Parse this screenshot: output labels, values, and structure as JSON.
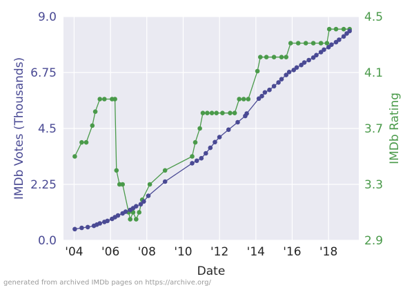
{
  "footnote": "generated from archived IMDb pages on https://archive.org/",
  "chart_data": {
    "type": "line",
    "xlabel": "Date",
    "xlim": [
      "2003-06-01",
      "2019-09-01"
    ],
    "x_ticks": [
      {
        "date": "2004-01-01",
        "label": "'04"
      },
      {
        "date": "2006-01-01",
        "label": "'06"
      },
      {
        "date": "2008-01-01",
        "label": "'08"
      },
      {
        "date": "2010-01-01",
        "label": "'10"
      },
      {
        "date": "2012-01-01",
        "label": "'12"
      },
      {
        "date": "2014-01-01",
        "label": "'14"
      },
      {
        "date": "2016-01-01",
        "label": "'16"
      },
      {
        "date": "2018-01-01",
        "label": "'18"
      }
    ],
    "grid": true,
    "legend": "none",
    "axes": {
      "left": {
        "label": "IMDb Votes (Thousands)",
        "lim": [
          0,
          9.0
        ],
        "ticks": [
          "0.0",
          "2.25",
          "4.5",
          "6.75",
          "9.0"
        ],
        "color": "#4a4a94"
      },
      "right": {
        "label": "IMDb Rating",
        "lim": [
          2.9,
          4.5
        ],
        "ticks": [
          "2.9",
          "3.3",
          "3.7",
          "4.1",
          "4.5"
        ],
        "color": "#4a9a4a"
      }
    },
    "series": [
      {
        "axis": "left",
        "color": "#4a4a94",
        "points": [
          [
            "2004-01-15",
            0.45
          ],
          [
            "2004-06-01",
            0.5
          ],
          [
            "2004-10-01",
            0.53
          ],
          [
            "2005-02-01",
            0.58
          ],
          [
            "2005-04-01",
            0.63
          ],
          [
            "2005-06-01",
            0.68
          ],
          [
            "2005-09-01",
            0.74
          ],
          [
            "2005-11-01",
            0.78
          ],
          [
            "2006-02-01",
            0.86
          ],
          [
            "2006-04-01",
            0.93
          ],
          [
            "2006-06-01",
            1.0
          ],
          [
            "2006-09-01",
            1.08
          ],
          [
            "2006-11-01",
            1.15
          ],
          [
            "2007-02-01",
            1.22
          ],
          [
            "2007-04-01",
            1.29
          ],
          [
            "2007-06-01",
            1.37
          ],
          [
            "2007-09-01",
            1.45
          ],
          [
            "2007-11-01",
            1.56
          ],
          [
            "2008-02-01",
            1.79
          ],
          [
            "2009-01-01",
            2.36
          ],
          [
            "2010-07-01",
            3.1
          ],
          [
            "2010-10-01",
            3.2
          ],
          [
            "2011-01-01",
            3.3
          ],
          [
            "2011-04-01",
            3.5
          ],
          [
            "2011-07-01",
            3.72
          ],
          [
            "2011-10-01",
            3.95
          ],
          [
            "2012-01-01",
            4.15
          ],
          [
            "2012-07-01",
            4.45
          ],
          [
            "2013-01-01",
            4.75
          ],
          [
            "2013-06-01",
            5.0
          ],
          [
            "2013-07-01",
            5.1
          ],
          [
            "2014-03-01",
            5.7
          ],
          [
            "2014-05-01",
            5.8
          ],
          [
            "2014-07-01",
            5.95
          ],
          [
            "2014-10-01",
            6.05
          ],
          [
            "2015-01-01",
            6.2
          ],
          [
            "2015-04-01",
            6.35
          ],
          [
            "2015-06-01",
            6.48
          ],
          [
            "2015-09-01",
            6.65
          ],
          [
            "2015-11-01",
            6.77
          ],
          [
            "2016-02-01",
            6.85
          ],
          [
            "2016-04-01",
            6.95
          ],
          [
            "2016-07-01",
            7.05
          ],
          [
            "2016-09-01",
            7.15
          ],
          [
            "2016-12-01",
            7.25
          ],
          [
            "2017-03-01",
            7.35
          ],
          [
            "2017-05-01",
            7.45
          ],
          [
            "2017-08-01",
            7.57
          ],
          [
            "2017-10-01",
            7.67
          ],
          [
            "2018-01-01",
            7.77
          ],
          [
            "2018-03-01",
            7.87
          ],
          [
            "2018-06-01",
            7.97
          ],
          [
            "2018-08-01",
            8.07
          ],
          [
            "2018-11-01",
            8.2
          ],
          [
            "2019-01-01",
            8.32
          ],
          [
            "2019-03-01",
            8.42
          ]
        ]
      },
      {
        "axis": "right",
        "color": "#4a9a4a",
        "points": [
          [
            "2004-01-15",
            3.5
          ],
          [
            "2004-06-01",
            3.6
          ],
          [
            "2004-09-01",
            3.6
          ],
          [
            "2005-01-01",
            3.72
          ],
          [
            "2005-03-01",
            3.82
          ],
          [
            "2005-06-01",
            3.91
          ],
          [
            "2005-09-01",
            3.91
          ],
          [
            "2006-02-01",
            3.91
          ],
          [
            "2006-04-01",
            3.91
          ],
          [
            "2006-05-01",
            3.4
          ],
          [
            "2006-07-01",
            3.3
          ],
          [
            "2006-09-01",
            3.3
          ],
          [
            "2007-01-01",
            3.1
          ],
          [
            "2007-02-01",
            3.05
          ],
          [
            "2007-04-01",
            3.1
          ],
          [
            "2007-06-01",
            3.05
          ],
          [
            "2007-08-01",
            3.1
          ],
          [
            "2007-10-01",
            3.19
          ],
          [
            "2008-03-01",
            3.3
          ],
          [
            "2009-01-01",
            3.4
          ],
          [
            "2010-07-01",
            3.5
          ],
          [
            "2010-09-01",
            3.6
          ],
          [
            "2010-12-01",
            3.7
          ],
          [
            "2011-02-01",
            3.81
          ],
          [
            "2011-05-01",
            3.81
          ],
          [
            "2011-08-01",
            3.81
          ],
          [
            "2011-11-01",
            3.81
          ],
          [
            "2012-03-01",
            3.81
          ],
          [
            "2012-08-01",
            3.81
          ],
          [
            "2012-11-01",
            3.81
          ],
          [
            "2013-02-01",
            3.91
          ],
          [
            "2013-05-01",
            3.91
          ],
          [
            "2013-08-01",
            3.91
          ],
          [
            "2014-02-01",
            4.11
          ],
          [
            "2014-04-01",
            4.21
          ],
          [
            "2014-08-01",
            4.21
          ],
          [
            "2015-01-01",
            4.21
          ],
          [
            "2015-06-01",
            4.21
          ],
          [
            "2015-09-01",
            4.21
          ],
          [
            "2015-12-01",
            4.31
          ],
          [
            "2016-05-01",
            4.31
          ],
          [
            "2016-10-01",
            4.31
          ],
          [
            "2017-03-01",
            4.31
          ],
          [
            "2017-08-01",
            4.31
          ],
          [
            "2017-12-01",
            4.31
          ],
          [
            "2018-01-15",
            4.41
          ],
          [
            "2018-06-01",
            4.41
          ],
          [
            "2018-11-01",
            4.41
          ],
          [
            "2019-03-01",
            4.41
          ]
        ]
      }
    ]
  }
}
